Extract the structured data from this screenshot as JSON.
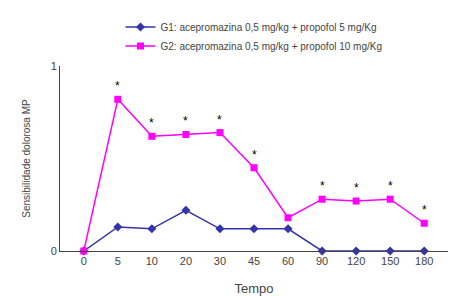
{
  "chart_data": {
    "type": "line",
    "categories": [
      "0",
      "5",
      "10",
      "20",
      "30",
      "45",
      "60",
      "90",
      "120",
      "150",
      "180"
    ],
    "series": [
      {
        "name": "G1: acepromazina 0,5 mg/kg + propofol 5 mg/Kg",
        "color": "#3333AA",
        "marker": "diamond",
        "line_style": "solid",
        "values": [
          0.0,
          0.13,
          0.12,
          0.22,
          0.12,
          0.12,
          0.12,
          0.0,
          0.0,
          0.0,
          0.0
        ]
      },
      {
        "name": "G2: acepromazina 0,5 mg/kg + propofol 10 mg/Kg",
        "color": "#FF00FF",
        "marker": "square",
        "line_style": "solid",
        "values": [
          0.0,
          0.82,
          0.62,
          0.63,
          0.64,
          0.45,
          0.18,
          0.28,
          0.27,
          0.28,
          0.15
        ]
      }
    ],
    "annotations": [
      {
        "x": "5",
        "y": 0.82,
        "text": "*"
      },
      {
        "x": "10",
        "y": 0.62,
        "text": "*"
      },
      {
        "x": "20",
        "y": 0.63,
        "text": "*"
      },
      {
        "x": "30",
        "y": 0.64,
        "text": "*"
      },
      {
        "x": "45",
        "y": 0.45,
        "text": "*"
      },
      {
        "x": "90",
        "y": 0.28,
        "text": "*"
      },
      {
        "x": "120",
        "y": 0.27,
        "text": "*"
      },
      {
        "x": "150",
        "y": 0.28,
        "text": "*"
      },
      {
        "x": "180",
        "y": 0.15,
        "text": "*"
      }
    ],
    "xlabel": "Tempo",
    "ylabel": "Sensibilidade dolorosa MP",
    "ylim": [
      0,
      1
    ],
    "yticks": [
      0,
      1
    ],
    "grid": false,
    "legend": "top"
  }
}
